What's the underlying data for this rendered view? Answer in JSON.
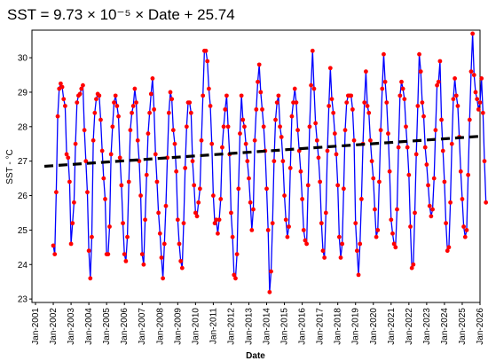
{
  "chart_data": {
    "type": "line",
    "title": "SST = 9.73 × 10⁻⁵ × Date + 25.74",
    "xlabel": "Date",
    "ylabel": "SST - °C",
    "x_tick_labels": [
      "Jan-2001",
      "Jan-2002",
      "Jan-2003",
      "Jan-2004",
      "Jan-2005",
      "Jan-2006",
      "Jan-2007",
      "Jan-2008",
      "Jan-2009",
      "Jan-2010",
      "Jan-2011",
      "Jan-2012",
      "Jan-2013",
      "Jan-2014",
      "Jan-2015",
      "Jan-2016",
      "Jan-2017",
      "Jan-2018",
      "Jan-2019",
      "Jan-2020",
      "Jan-2021",
      "Jan-2022",
      "Jan-2023",
      "Jan-2024",
      "Jan-2025",
      "Jan-2026"
    ],
    "y_tick_labels": [
      "23",
      "24",
      "25",
      "26",
      "27",
      "28",
      "29",
      "30"
    ],
    "xlim_years": [
      2000.8,
      2026.0
    ],
    "ylim": [
      22.9,
      30.8
    ],
    "grid": false,
    "legend": "none",
    "colors": {
      "line": "#0000ff",
      "marker": "#ff0000",
      "trend": "#000000"
    },
    "trend": {
      "slope_per_day": 9.73e-05,
      "intercept": 25.74,
      "x_start": 2001.5,
      "x_end": 2026.0,
      "y_start": 26.85,
      "y_end": 27.72,
      "style": "dashed"
    },
    "series": [
      {
        "start_year": 2002,
        "start_month": 1,
        "values": [
          24.55,
          24.3,
          26.1,
          28.3,
          29.1,
          29.25,
          29.15,
          28.8,
          28.6,
          27.2,
          27.1,
          26.4,
          24.6,
          25.2,
          25.8,
          27.5,
          28.7,
          28.9,
          28.95,
          29.1,
          29.2,
          27.9,
          27.0,
          26.1,
          24.4,
          23.6,
          24.8,
          27.6,
          28.4,
          28.8,
          28.95,
          28.9,
          28.2,
          27.3,
          26.5,
          25.9,
          24.3,
          24.3,
          25.1,
          27.2,
          28.0,
          28.7,
          28.9,
          28.6,
          28.3,
          27.1,
          26.3,
          25.2,
          24.3,
          24.1,
          24.8,
          26.4,
          27.9,
          28.4,
          28.6,
          29.1,
          28.7,
          27.6,
          27.0,
          26.0,
          24.3,
          24.0,
          25.3,
          26.6,
          27.8,
          28.4,
          28.95,
          29.4,
          28.5,
          27.2,
          26.4,
          25.5,
          24.9,
          24.2,
          23.6,
          24.6,
          25.7,
          27.1,
          28.4,
          29.0,
          28.8,
          27.9,
          27.5,
          26.7,
          25.3,
          24.6,
          24.1,
          23.9,
          25.2,
          26.8,
          28.0,
          28.7,
          28.7,
          28.4,
          27.0,
          26.3,
          25.5,
          25.4,
          25.8,
          26.2,
          27.6,
          28.9,
          30.2,
          30.2,
          29.9,
          29.1,
          28.6,
          27.5,
          26.0,
          25.2,
          25.3,
          24.9,
          25.3,
          25.9,
          27.4,
          28.0,
          28.5,
          28.9,
          28.0,
          27.2,
          25.5,
          24.8,
          23.7,
          23.6,
          24.3,
          26.2,
          27.8,
          28.9,
          28.2,
          28.0,
          27.5,
          27.0,
          26.5,
          25.8,
          25.0,
          25.6,
          27.6,
          28.5,
          29.3,
          29.8,
          29.0,
          28.5,
          28.0,
          27.3,
          26.2,
          25.0,
          23.2,
          23.8,
          25.2,
          27.0,
          28.2,
          28.7,
          28.9,
          28.0,
          27.7,
          27.0,
          26.0,
          25.3,
          24.8,
          25.1,
          26.8,
          28.3,
          28.7,
          29.1,
          28.7,
          27.9,
          27.3,
          26.7,
          25.9,
          25.0,
          24.7,
          24.6,
          26.3,
          28.0,
          29.2,
          30.2,
          29.1,
          28.1,
          27.6,
          27.1,
          26.4,
          25.2,
          24.4,
          24.2,
          25.5,
          27.3,
          28.6,
          29.7,
          28.8,
          28.4,
          27.8,
          27.2,
          26.3,
          24.8,
          24.2,
          24.6,
          26.2,
          27.9,
          28.7,
          28.9,
          28.9,
          28.9,
          28.5,
          27.6,
          25.2,
          24.4,
          23.7,
          24.6,
          25.9,
          27.5,
          28.7,
          29.6,
          28.6,
          28.4,
          27.6,
          27.0,
          26.5,
          25.6,
          24.8,
          25.0,
          26.4,
          27.9,
          29.1,
          30.1,
          29.3,
          28.7,
          27.8,
          26.7,
          25.3,
          24.9,
          24.6,
          24.5,
          25.6,
          27.4,
          28.9,
          29.3,
          29.1,
          28.8,
          28.0,
          27.4,
          26.6,
          25.1,
          23.9,
          24.0,
          25.5,
          27.2,
          28.6,
          30.1,
          29.6,
          28.7,
          28.3,
          27.4,
          26.9,
          26.3,
          25.7,
          25.4,
          25.6,
          26.5,
          27.9,
          29.2,
          29.3,
          29.9,
          28.2,
          27.3,
          26.4,
          25.2,
          24.4,
          24.5,
          25.8,
          27.5,
          28.8,
          29.4,
          28.9,
          28.6,
          27.7,
          26.7,
          25.9,
          25.1,
          24.8,
          25.0,
          26.6,
          28.2,
          29.6,
          30.7,
          29.5,
          29.0,
          28.8,
          28.5,
          28.7,
          29.4,
          28.4,
          27.0,
          25.8
        ]
      }
    ]
  }
}
